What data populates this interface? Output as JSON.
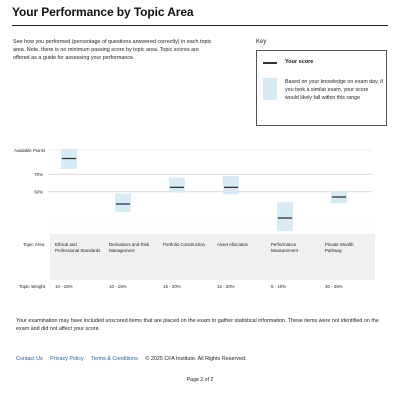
{
  "page": {
    "title": "Your Performance by Topic Area",
    "intro": "See how you performed (percentage of questions answered correctly) in each topic area. Note, there is no minimum passing score by topic area. Topic scores are offered as a guide for assessing your performance."
  },
  "key": {
    "title": "Key",
    "score_label": "Your score",
    "range_label": "Based on your knowledge on exam day, if you took a similar exam, your score would likely fall within this range"
  },
  "chart_data": {
    "type": "range-dot",
    "ylabel": "Available Points",
    "yticks": [
      {
        "label": "70%",
        "value": 70
      },
      {
        "label": "50%",
        "value": 50
      }
    ],
    "ylim": [
      20,
      100
    ],
    "colors": {
      "range": "#d6ebf6",
      "score": "#333333",
      "grid": "#cccccc"
    },
    "categories": [
      "Ethical and Professional Standards",
      "Derivatives and Risk Management",
      "Portfolio Construction",
      "Asset Allocation",
      "Performance Measurement",
      "Private Wealth Pathway"
    ],
    "scores": [
      88,
      36,
      55,
      55,
      20,
      44
    ],
    "range_low": [
      76,
      27,
      49,
      47,
      5,
      37
    ],
    "range_high": [
      99,
      48,
      66,
      68,
      38,
      51
    ]
  },
  "table": {
    "topic_header": "Topic Area",
    "weight_header": "Topic Weight",
    "topics": [
      "Ethical and Professional Standards",
      "Derivatives and Risk Management",
      "Portfolio Construction",
      "Asset Allocation",
      "Performance Measurement",
      "Private Wealth Pathway"
    ],
    "weights": [
      "10 - 15%",
      "10 - 15%",
      "15 - 20%",
      "15 - 20%",
      "5 - 10%",
      "30 - 35%"
    ]
  },
  "footnote": "Your examination may have included unscored items that are placed on the exam to gather statistical information. These items were not identified on the exam and did not affect your score.",
  "footer": {
    "contact": "Contact Us",
    "privacy": "Privacy Policy",
    "terms": "Terms & Conditions",
    "copyright": "© 2025 CFA Institute. All Rights Reserved."
  },
  "page_number": "Page 2 of 2"
}
